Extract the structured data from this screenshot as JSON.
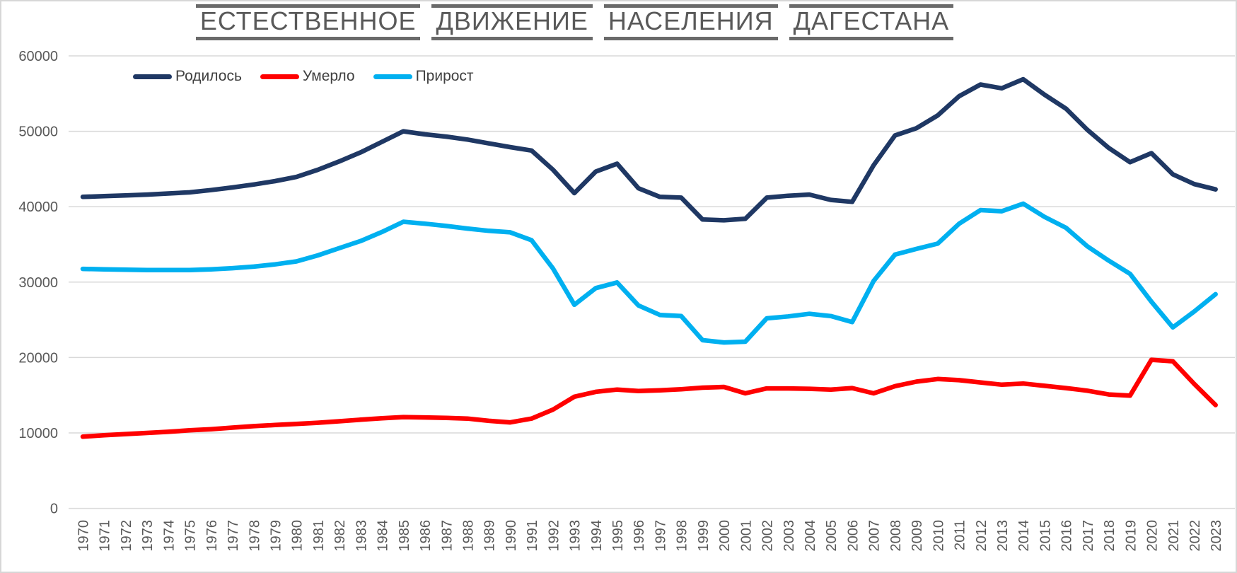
{
  "title": {
    "text": "ЕСТЕСТВЕННОЕ ДВИЖЕНИЕ НАСЕЛЕНИЯ ДАГЕСТАНА",
    "words": [
      "ЕСТЕСТВЕННОЕ",
      "ДВИЖЕНИЕ",
      "НАСЕЛЕНИЯ",
      "ДАГЕСТАНА"
    ]
  },
  "legend": {
    "items": [
      {
        "id": "born",
        "label": "Родилось",
        "color": "#1F3864"
      },
      {
        "id": "died",
        "label": "Умерло",
        "color": "#FF0000"
      },
      {
        "id": "increase",
        "label": "Прирост",
        "color": "#00B0F0"
      }
    ]
  },
  "colors": {
    "grid": "#D9D9D9",
    "axis_text": "#595959",
    "title_text": "#595959",
    "frame_border": "#D7D7D7",
    "background": "#FFFFFF"
  },
  "chart_data": {
    "type": "line",
    "title": "ЕСТЕСТВЕННОЕ ДВИЖЕНИЕ НАСЕЛЕНИЯ ДАГЕСТАНА",
    "xlabel": "",
    "ylabel": "",
    "ylim": [
      0,
      60000
    ],
    "y_ticks": [
      0,
      10000,
      20000,
      30000,
      40000,
      50000,
      60000
    ],
    "grid": true,
    "legend_position": "top-left",
    "x": [
      1970,
      1971,
      1972,
      1973,
      1974,
      1975,
      1976,
      1977,
      1978,
      1979,
      1980,
      1981,
      1982,
      1983,
      1984,
      1985,
      1986,
      1987,
      1988,
      1989,
      1990,
      1991,
      1992,
      1993,
      1994,
      1995,
      1996,
      1997,
      1998,
      1999,
      2000,
      2001,
      2002,
      2003,
      2004,
      2005,
      2006,
      2007,
      2008,
      2009,
      2010,
      2011,
      2012,
      2013,
      2014,
      2015,
      2016,
      2017,
      2018,
      2019,
      2020,
      2021,
      2022,
      2023
    ],
    "series": [
      {
        "id": "born",
        "name": "Родилось",
        "color": "#1F3864",
        "values": [
          41300,
          41400,
          41500,
          41600,
          41750,
          41900,
          42200,
          42550,
          42950,
          43400,
          43950,
          44900,
          46000,
          47200,
          48600,
          50000,
          49600,
          49300,
          48900,
          48400,
          47900,
          47450,
          44900,
          41800,
          44650,
          45700,
          42450,
          41300,
          41200,
          38300,
          38200,
          38400,
          41200,
          41450,
          41600,
          40900,
          40650,
          45500,
          49450,
          50400,
          52100,
          54650,
          56200,
          55700,
          56900,
          54850,
          53000,
          50200,
          47800,
          45900,
          47100,
          44300,
          43000,
          42300
        ]
      },
      {
        "id": "died",
        "name": "Умерло",
        "color": "#FF0000",
        "values": [
          9500,
          9700,
          9850,
          10000,
          10150,
          10350,
          10500,
          10700,
          10900,
          11050,
          11200,
          11350,
          11550,
          11750,
          11950,
          12100,
          12050,
          12000,
          11900,
          11600,
          11400,
          11900,
          13100,
          14800,
          15450,
          15750,
          15550,
          15650,
          15800,
          16000,
          16100,
          15250,
          15900,
          15900,
          15850,
          15750,
          15950,
          15250,
          16200,
          16800,
          17150,
          17000,
          16700,
          16400,
          16550,
          16250,
          15950,
          15600,
          15100,
          14950,
          19700,
          19500,
          16500,
          13700
        ]
      },
      {
        "id": "increase",
        "name": "Прирост",
        "color": "#00B0F0",
        "values": [
          31750,
          31700,
          31650,
          31600,
          31600,
          31600,
          31700,
          31850,
          32050,
          32350,
          32750,
          33550,
          34500,
          35450,
          36650,
          38000,
          37750,
          37450,
          37100,
          36800,
          36600,
          35550,
          31800,
          27000,
          29200,
          29950,
          26900,
          25650,
          25500,
          22300,
          22000,
          22100,
          25200,
          25450,
          25800,
          25500,
          24700,
          30150,
          33650,
          34400,
          35100,
          37750,
          39550,
          39400,
          40400,
          38650,
          37200,
          34750,
          32850,
          31100,
          27400,
          24000,
          26100,
          28400
        ]
      }
    ]
  }
}
